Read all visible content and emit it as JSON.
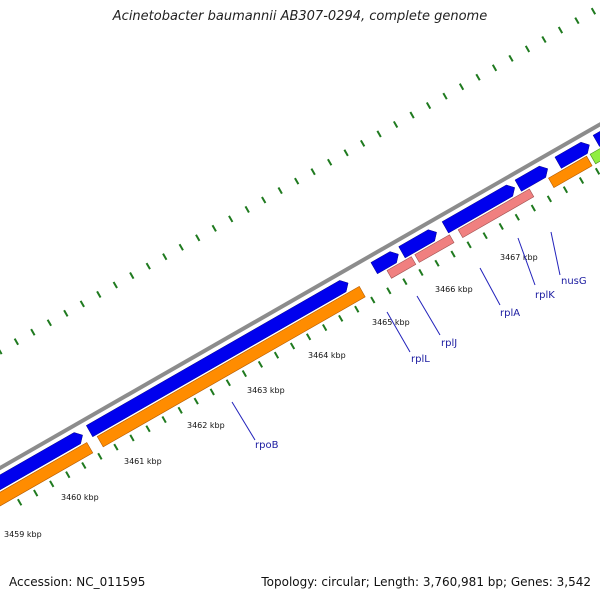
{
  "title": "Acinetobacter baumannii AB307-0294, complete genome",
  "colors": {
    "backbone": "#8c8c8c",
    "forward_gene": "#0000ee",
    "rna_gene": "#f08080",
    "cds": "#ff8c00",
    "nusg_cds": "#90ee40",
    "tick_dots": "#1f7a1f",
    "label_line": "#2222bb",
    "cyan_gene": "#66ccee"
  },
  "kbp_ticks": [
    "3459 kbp",
    "3460 kbp",
    "3461 kbp",
    "3462 kbp",
    "3463 kbp",
    "3464 kbp",
    "3465 kbp",
    "3466 kbp",
    "3467 kbp"
  ],
  "gene_labels": [
    "rpoB",
    "rplL",
    "rplJ",
    "rplA",
    "rplK",
    "nusG"
  ],
  "footer": {
    "accession": "Accession: NC_011595",
    "topology": "Topology: circular; Length: 3,760,981 bp; Genes: 3,542"
  }
}
